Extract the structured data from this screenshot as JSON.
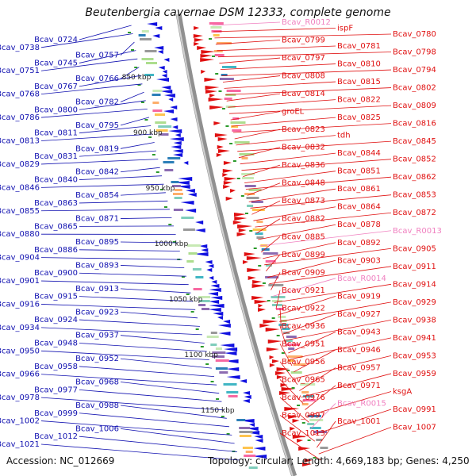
{
  "title": "Beutenbergia cavernae DSM 12333, complete genome",
  "footer": {
    "accession": "Accession: NC_012669",
    "summary": "Topology: circular; Length: 4,669,183 bp; Genes: 4,250"
  },
  "colors": {
    "left_labels": "#1010b0",
    "right_labels": "#e01010",
    "rna_labels": "#f080c0",
    "reverse_genes": "#1010e0",
    "forward_genes": "#e01010",
    "backbone": "#909090"
  },
  "scale_labels": [
    "850 kbp",
    "900 kbp",
    "950 kbp",
    "1000 kbp",
    "1050 kbp",
    "1100 kbp",
    "1150 kbp"
  ],
  "left_labels": [
    "Bcav_0724",
    "Bcav_0738",
    "Bcav_0757",
    "Bcav_0745",
    "Bcav_0751",
    "Bcav_0766",
    "Bcav_0767",
    "Bcav_0768",
    "Bcav_0782",
    "Bcav_0800",
    "Bcav_0786",
    "Bcav_0795",
    "Bcav_0811",
    "Bcav_0813",
    "Bcav_0819",
    "Bcav_0831",
    "Bcav_0829",
    "Bcav_0842",
    "Bcav_0840",
    "Bcav_0846",
    "Bcav_0854",
    "Bcav_0863",
    "Bcav_0855",
    "Bcav_0871",
    "Bcav_0865",
    "Bcav_0880",
    "Bcav_0895",
    "Bcav_0886",
    "Bcav_0904",
    "Bcav_0893",
    "Bcav_0900",
    "Bcav_0901",
    "Bcav_0913",
    "Bcav_0915",
    "Bcav_0916",
    "Bcav_0923",
    "Bcav_0924",
    "Bcav_0934",
    "Bcav_0937",
    "Bcav_0948",
    "Bcav_0950",
    "Bcav_0952",
    "Bcav_0958",
    "Bcav_0966",
    "Bcav_0968",
    "Bcav_0977",
    "Bcav_0978",
    "Bcav_0988",
    "Bcav_0999",
    "Bcav_1002",
    "Bcav_1006",
    "Bcav_1012",
    "Bcav_1021"
  ],
  "right_labels": [
    "Bcav_R0012",
    "ispF",
    "Bcav_0780",
    "Bcav_0799",
    "Bcav_0781",
    "Bcav_0798",
    "Bcav_0797",
    "Bcav_0810",
    "Bcav_0794",
    "Bcav_0808",
    "Bcav_0815",
    "Bcav_0802",
    "Bcav_0814",
    "Bcav_0822",
    "Bcav_0809",
    "groEL",
    "Bcav_0825",
    "Bcav_0816",
    "Bcav_0823",
    "tdh",
    "Bcav_0845",
    "Bcav_0832",
    "Bcav_0844",
    "Bcav_0852",
    "Bcav_0836",
    "Bcav_0851",
    "Bcav_0862",
    "Bcav_0848",
    "Bcav_0861",
    "Bcav_0853",
    "Bcav_0873",
    "Bcav_0864",
    "Bcav_0872",
    "Bcav_0882",
    "Bcav_0878",
    "Bcav_R0013",
    "Bcav_0885",
    "Bcav_0892",
    "Bcav_0905",
    "Bcav_0899",
    "Bcav_0903",
    "Bcav_0911",
    "Bcav_0909",
    "Bcav_R0014",
    "Bcav_0914",
    "Bcav_0921",
    "Bcav_0919",
    "Bcav_0929",
    "Bcav_0922",
    "Bcav_0927",
    "Bcav_0938",
    "Bcav_0936",
    "Bcav_0943",
    "Bcav_0941",
    "Bcav_0951",
    "Bcav_0946",
    "Bcav_0953",
    "Bcav_0956",
    "Bcav_0957",
    "Bcav_0959",
    "Bcav_0965",
    "Bcav_0971",
    "ksgA",
    "Bcav_0976",
    "Bcav_R0015",
    "Bcav_0991",
    "Bcav_0997",
    "Bcav_1001",
    "Bcav_1007",
    "Bcav_1013"
  ],
  "rna_label_names": [
    "Bcav_R0012",
    "Bcav_R0013",
    "Bcav_R0014",
    "Bcav_R0015"
  ]
}
